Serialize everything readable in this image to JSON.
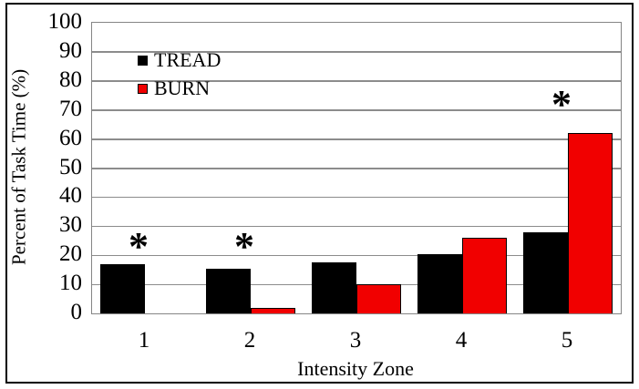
{
  "chart_data": {
    "type": "bar",
    "title": "",
    "categories": [
      "1",
      "2",
      "3",
      "4",
      "5"
    ],
    "series": [
      {
        "name": "TREAD",
        "color": "#000000",
        "values": [
          17,
          15.5,
          17.5,
          20.5,
          28
        ]
      },
      {
        "name": "BURN",
        "color": "#f10000",
        "values": [
          0,
          2,
          10,
          26,
          62
        ]
      }
    ],
    "xlabel": "Intensity Zone",
    "ylabel": "Percent of Task Time (%)",
    "ylim": [
      0,
      100
    ],
    "yticks": [
      0,
      10,
      20,
      30,
      40,
      50,
      60,
      70,
      80,
      90,
      100
    ],
    "grid": "horizontal",
    "legend_position": "inside-top-left",
    "annotations": [
      {
        "symbol": "*",
        "category": "1",
        "y": 25
      },
      {
        "symbol": "*",
        "category": "2",
        "y": 25
      },
      {
        "symbol": "*",
        "category": "5",
        "y": 74
      }
    ],
    "colors": {
      "gridline": "#8c8c8c",
      "plot_border": "#858585",
      "figure_border": "#000000",
      "bar_outline": "#000000",
      "text": "#000000"
    }
  }
}
